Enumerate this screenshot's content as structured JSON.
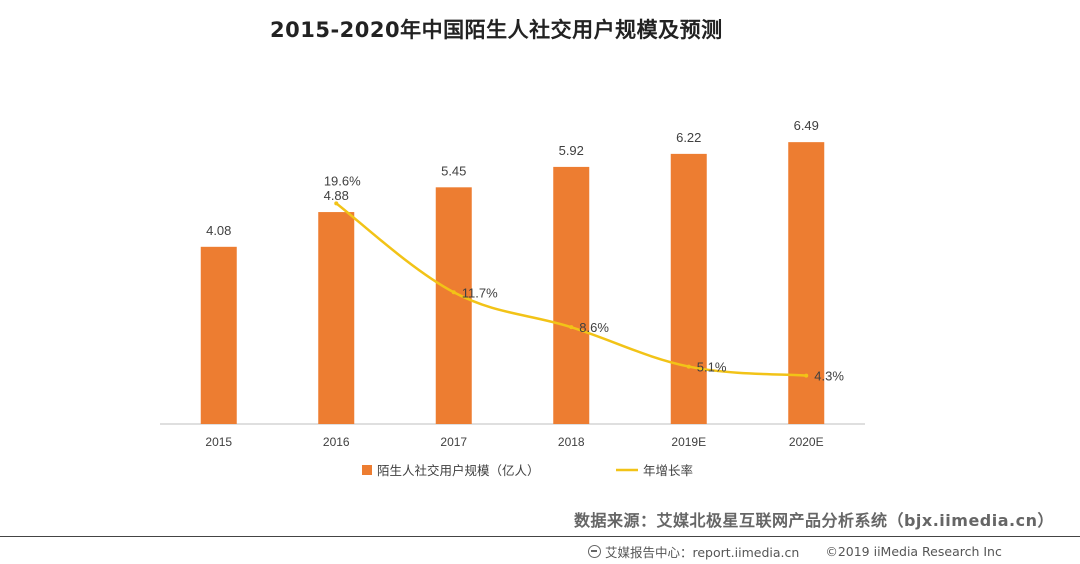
{
  "title": "2015-2020年中国陌生人社交用户规模及预测",
  "chart_data": {
    "type": "bar",
    "categories": [
      "2015",
      "2016",
      "2017",
      "2018",
      "2019E",
      "2020E"
    ],
    "series": [
      {
        "name": "陌生人社交用户规模（亿人）",
        "type": "bar",
        "values": [
          4.08,
          4.88,
          5.45,
          5.92,
          6.22,
          6.49
        ],
        "labels": [
          "4.08",
          "4.88",
          "5.45",
          "5.92",
          "6.22",
          "6.49"
        ],
        "color": "#ED7D31"
      },
      {
        "name": "年增长率",
        "type": "line",
        "values": [
          null,
          19.6,
          11.7,
          8.6,
          5.1,
          4.3
        ],
        "labels": [
          "",
          "19.6%",
          "11.7%",
          "8.6%",
          "5.1%",
          "4.3%"
        ],
        "color": "#F2C317"
      }
    ],
    "ylim": [
      0,
      7
    ],
    "y2lim": [
      0,
      27
    ],
    "grid": false,
    "legend": "bottom"
  },
  "source": "数据来源：艾媒北极星互联网产品分析系统（bjx.iimedia.cn）",
  "footer": {
    "center": "艾媒报告中心：report.iimedia.cn",
    "copyright": "©2019  iiMedia Research Inc"
  }
}
